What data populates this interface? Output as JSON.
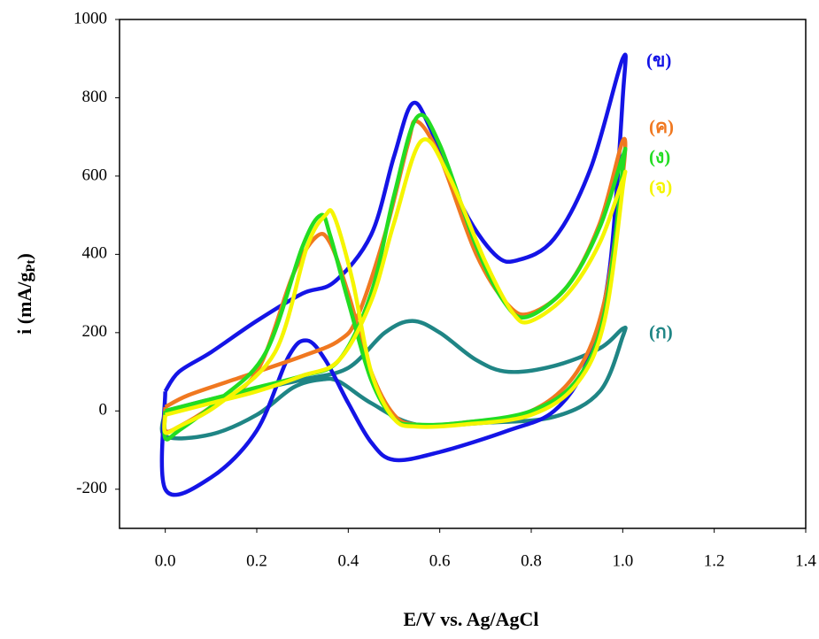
{
  "chart_data": {
    "type": "line",
    "x_label": "E/V vs. Ag/AgCl",
    "y_label": {
      "text": "i (mA/g",
      "sub": "Pt",
      "end": ")"
    },
    "xlim": [
      -0.1,
      1.4
    ],
    "xticks": [
      {
        "value": 0,
        "label": "0.0"
      },
      0.2,
      0.4,
      0.6,
      0.8,
      {
        "value": 1,
        "label": "1.0"
      },
      1.2,
      1.4
    ],
    "ylim": [
      -300,
      1000
    ],
    "yticks": [
      -200,
      0,
      200,
      400,
      600,
      800,
      1000
    ],
    "series": [
      {
        "name": "(ก)",
        "color": "#1f8585",
        "x": [
          0,
          0.1,
          0.2,
          0.3,
          0.4,
          0.48,
          0.54,
          0.6,
          0.68,
          0.75,
          0.85,
          0.95,
          1.0,
          1.0,
          0.95,
          0.85,
          0.7,
          0.55,
          0.45,
          0.38,
          0.34,
          0.28,
          0.2,
          0.1,
          0.0,
          0
        ],
        "values": [
          0,
          30,
          55,
          80,
          110,
          200,
          230,
          200,
          130,
          100,
          115,
          160,
          210,
          190,
          50,
          -15,
          -30,
          -35,
          20,
          75,
          80,
          60,
          -10,
          -60,
          -65,
          0
        ]
      },
      {
        "name": "(ข)",
        "color": "#1414e6",
        "x": [
          0,
          0.03,
          0.1,
          0.2,
          0.3,
          0.37,
          0.45,
          0.5,
          0.54,
          0.58,
          0.65,
          0.72,
          0.77,
          0.85,
          0.93,
          1.0,
          1.0,
          0.97,
          0.92,
          0.85,
          0.75,
          0.6,
          0.5,
          0.45,
          0.4,
          0.35,
          0.31,
          0.27,
          0.2,
          0.1,
          0.0,
          0
        ],
        "values": [
          50,
          100,
          150,
          230,
          300,
          330,
          450,
          650,
          785,
          720,
          520,
          400,
          385,
          440,
          620,
          900,
          800,
          350,
          120,
          0,
          -50,
          -105,
          -125,
          -80,
          20,
          130,
          180,
          140,
          -50,
          -170,
          -200,
          50
        ]
      },
      {
        "name": "(ค)",
        "color": "#f07820",
        "x": [
          0,
          0.05,
          0.15,
          0.3,
          0.38,
          0.42,
          0.48,
          0.53,
          0.55,
          0.6,
          0.68,
          0.75,
          0.8,
          0.88,
          0.95,
          1.0,
          1.0,
          0.96,
          0.9,
          0.8,
          0.65,
          0.55,
          0.5,
          0.45,
          0.4,
          0.36,
          0.33,
          0.28,
          0.2,
          0.1,
          0.03,
          0,
          0
        ],
        "values": [
          10,
          40,
          80,
          140,
          180,
          240,
          450,
          680,
          740,
          650,
          400,
          270,
          250,
          320,
          480,
          690,
          600,
          280,
          100,
          0,
          -30,
          -35,
          -10,
          100,
          300,
          430,
          445,
          350,
          100,
          10,
          -40,
          -50,
          10
        ]
      },
      {
        "name": "(ง)",
        "color": "#22dd22",
        "x": [
          0,
          0.1,
          0.2,
          0.3,
          0.38,
          0.45,
          0.5,
          0.55,
          0.6,
          0.68,
          0.74,
          0.79,
          0.88,
          0.95,
          1.0,
          1.0,
          0.96,
          0.9,
          0.8,
          0.65,
          0.55,
          0.5,
          0.45,
          0.4,
          0.36,
          0.34,
          0.3,
          0.22,
          0.12,
          0.03,
          0,
          0
        ],
        "values": [
          0,
          30,
          60,
          90,
          130,
          300,
          550,
          750,
          680,
          420,
          280,
          240,
          320,
          470,
          650,
          620,
          250,
          80,
          0,
          -30,
          -35,
          -20,
          80,
          280,
          450,
          500,
          420,
          150,
          30,
          -50,
          -70,
          0
        ]
      },
      {
        "name": "(จ)",
        "color": "#f5f500",
        "x": [
          0,
          0.1,
          0.2,
          0.3,
          0.38,
          0.45,
          0.5,
          0.56,
          0.62,
          0.7,
          0.76,
          0.8,
          0.88,
          0.95,
          1.0,
          1.0,
          0.96,
          0.9,
          0.8,
          0.65,
          0.55,
          0.5,
          0.45,
          0.41,
          0.37,
          0.35,
          0.31,
          0.24,
          0.12,
          0.03,
          0,
          0
        ],
        "values": [
          -10,
          20,
          50,
          90,
          130,
          280,
          480,
          690,
          600,
          380,
          250,
          230,
          300,
          430,
          590,
          570,
          230,
          70,
          -10,
          -35,
          -40,
          -20,
          100,
          330,
          495,
          500,
          420,
          150,
          20,
          -40,
          -55,
          -10
        ]
      }
    ]
  }
}
